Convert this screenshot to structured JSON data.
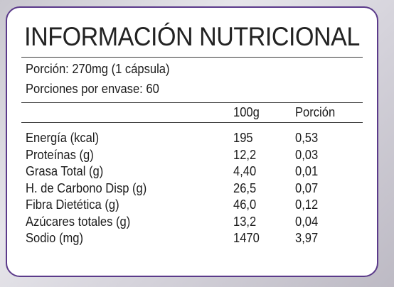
{
  "title": "INFORMACIÓN NUTRICIONAL",
  "serving": {
    "portion": "Porción: 270mg (1 cápsula)",
    "per_container": "Porciones por envase: 60"
  },
  "columns": {
    "per100": "100g",
    "per_portion": "Porción"
  },
  "rows": [
    {
      "nutrient": "Energía (kcal)",
      "per100": "195",
      "per_portion": "0,53"
    },
    {
      "nutrient": "Proteínas (g)",
      "per100": "12,2",
      "per_portion": "0,03"
    },
    {
      "nutrient": "Grasa Total (g)",
      "per100": "4,40",
      "per_portion": "0,01"
    },
    {
      "nutrient": "H. de Carbono Disp (g)",
      "per100": "26,5",
      "per_portion": "0,07"
    },
    {
      "nutrient": "Fibra Dietética (g)",
      "per100": "46,0",
      "per_portion": "0,12"
    },
    {
      "nutrient": "Azúcares totales (g)",
      "per100": "13,2",
      "per_portion": "0,04"
    },
    {
      "nutrient": "Sodio (mg)",
      "per100": "1470",
      "per_portion": "3,97"
    }
  ],
  "colors": {
    "border": "#5b3a8a",
    "panel": "#ffffff",
    "text": "#1b1b1b"
  }
}
